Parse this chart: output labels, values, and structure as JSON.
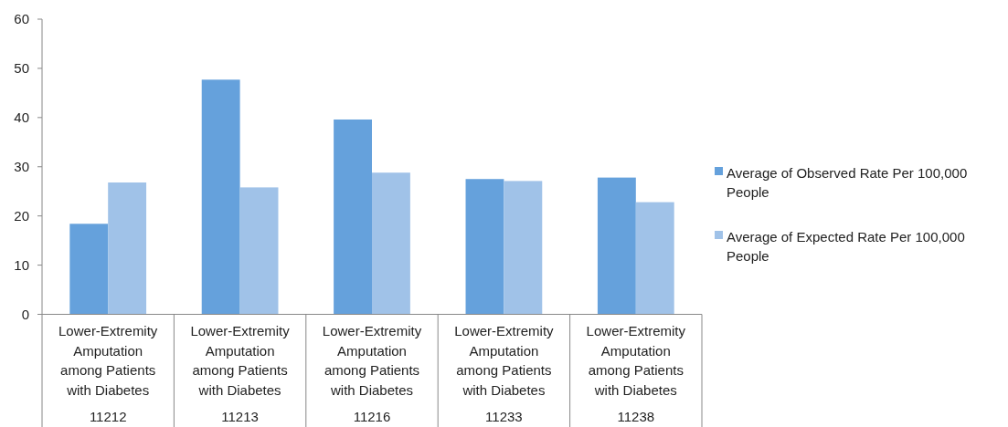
{
  "chart_data": {
    "type": "bar",
    "categories": [
      "11212",
      "11213",
      "11216",
      "11233",
      "11238"
    ],
    "series": [
      {
        "name": "Average of Observed Rate Per 100,000 People",
        "color": "#65a1dc",
        "values": [
          18.4,
          47.7,
          39.6,
          27.5,
          27.8
        ]
      },
      {
        "name": "Average of Expected Rate Per 100,000 People",
        "color": "#a0c2e8",
        "values": [
          26.8,
          25.8,
          28.8,
          27.1,
          22.8
        ]
      }
    ],
    "annotations": [
      "Lower-Extremity Amputation among Patients with Diabetes",
      "Lower-Extremity Amputation among Patients with Diabetes",
      "Lower-Extremity Amputation among Patients with Diabetes",
      "Lower-Extremity Amputation among Patients with Diabetes",
      "Lower-Extremity Amputation among Patients with Diabetes"
    ],
    "ylim": [
      0,
      60
    ],
    "yticks": [
      0,
      10,
      20,
      30,
      40,
      50,
      60
    ],
    "grid": false,
    "legend": "right"
  }
}
